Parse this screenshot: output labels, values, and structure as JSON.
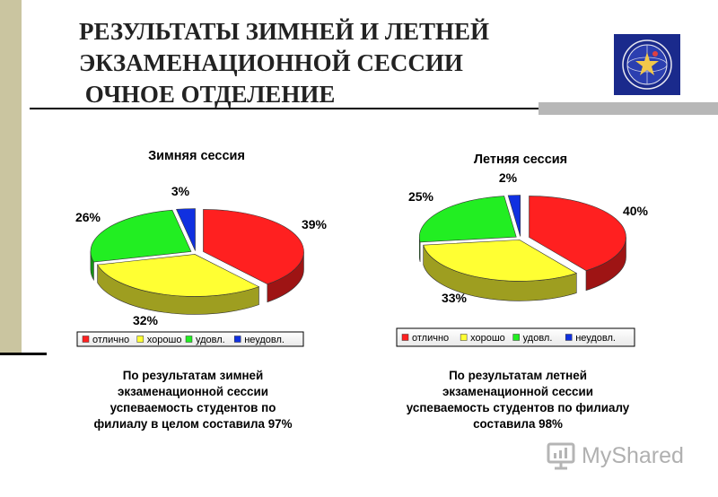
{
  "slide": {
    "title_lines": [
      "РЕЗУЛЬТАТЫ ЗИМНЕЙ И ЛЕТНЕЙ",
      "ЭКЗАМЕНАЦИОННОЙ СЕССИИ",
      " ОЧНОЕ ОТДЕЛЕНИЕ"
    ],
    "accent_color": "#cac5a0",
    "logo_icon": "university-emblem-icon",
    "watermark": {
      "text": "MyShared",
      "icon": "presentation-board-icon"
    }
  },
  "chart_data": [
    {
      "type": "pie",
      "title": "Зимняя сессия",
      "categories": [
        "отлично",
        "хорошо",
        "удовл.",
        "неудовл."
      ],
      "values": [
        39,
        32,
        26,
        3
      ],
      "labels": [
        "39%",
        "32%",
        "26%",
        "3%"
      ],
      "colors": [
        "#ff2020",
        "#ffff33",
        "#22ee22",
        "#1030e0"
      ],
      "legend_position": "bottom"
    },
    {
      "type": "pie",
      "title": "Летняя сессия",
      "categories": [
        "отлично",
        "хорошо",
        "удовл.",
        "неудовл."
      ],
      "values": [
        40,
        33,
        25,
        2
      ],
      "labels": [
        "40%",
        "33%",
        "25%",
        "2%"
      ],
      "colors": [
        "#ff2020",
        "#ffff33",
        "#22ee22",
        "#1030e0"
      ],
      "legend_position": "bottom"
    }
  ],
  "captions": [
    {
      "lines": [
        "По результатам зимней",
        "экзаменационной сессии",
        "успеваемость студентов по",
        "филиалу в целом составила 97%"
      ]
    },
    {
      "lines": [
        "По результатам летней",
        "экзаменационной сессии",
        "успеваемость студентов по филиалу",
        "составила 98%"
      ]
    }
  ]
}
